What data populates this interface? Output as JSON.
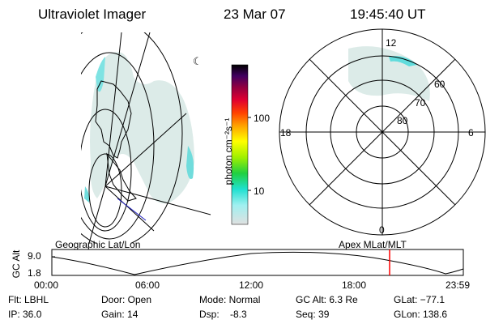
{
  "header": {
    "instrument": "Ultraviolet Imager",
    "date": "23 Mar 07",
    "time": "19:45:40 UT"
  },
  "colorbar": {
    "label": "photon cm⁻²s⁻¹",
    "ticks": [
      "100",
      "10"
    ]
  },
  "polar_plot": {
    "mlt_labels": {
      "top": "12",
      "left": "18",
      "right": "6",
      "bottom": "0"
    },
    "lat_labels": [
      "60",
      "70",
      "80"
    ]
  },
  "panels": {
    "left_label": "Geographic Lat/Lon",
    "right_label": "Apex MLat/MLT"
  },
  "altitude_plot": {
    "ylabel": "GC Alt",
    "yticks": [
      "9.0",
      "1.8"
    ],
    "xticks": [
      "00:00",
      "06:00",
      "12:00",
      "18:00",
      "23:59"
    ]
  },
  "stats": {
    "filter": "Flt: LBHL",
    "ip": "IP: 36.0",
    "door": "Door: Open",
    "gain": "Gain: 14",
    "mode": "Mode: Normal",
    "dsp": "Dsp:    -8.3",
    "gcalt": "GC Alt: 6.3 Re",
    "seq": "Seq: 39",
    "glat": "GLat: −77.1",
    "glon": "GLon: 138.6"
  },
  "colors": {
    "aurora_light": "#d5e8e6",
    "aurora_cyan": "#40e0e0",
    "marker_red": "#ff0000"
  }
}
